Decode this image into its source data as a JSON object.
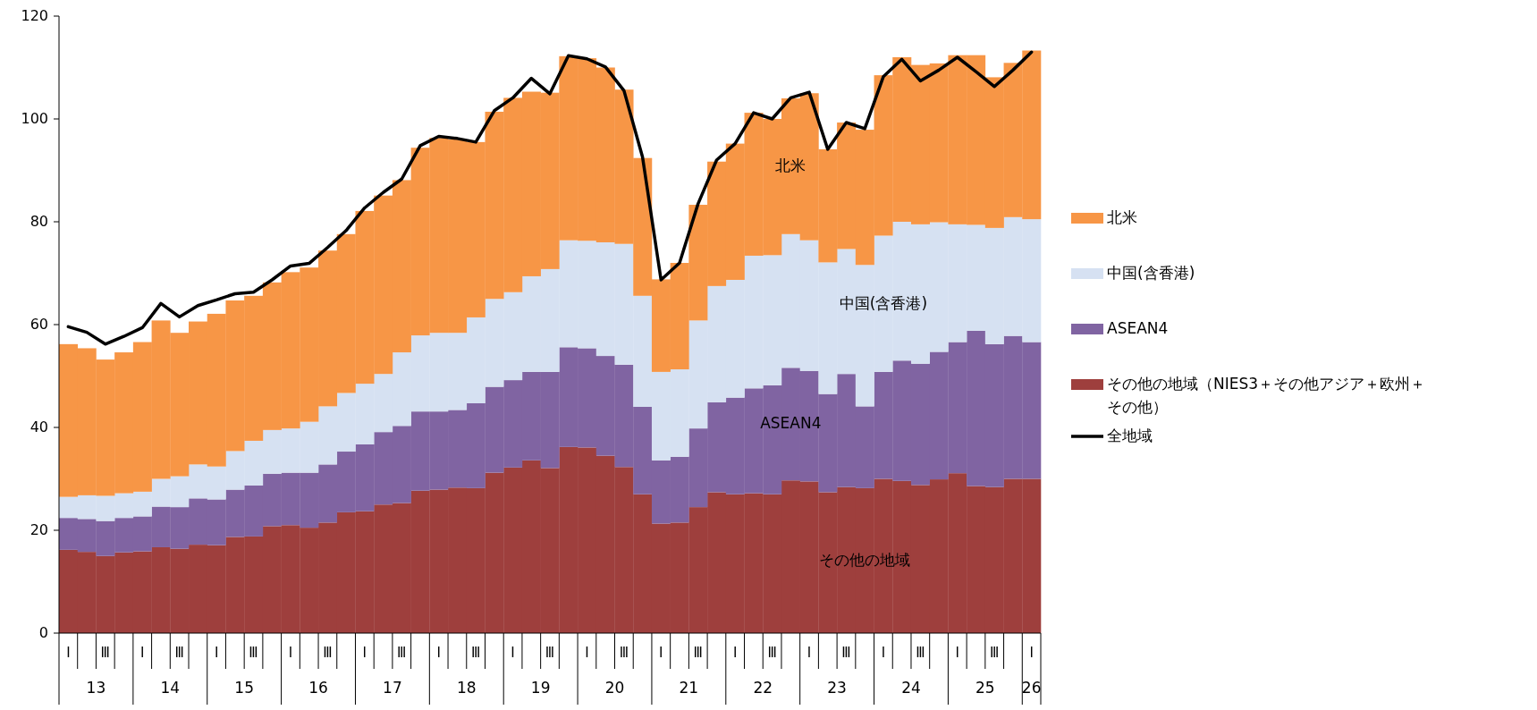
{
  "chart_data": {
    "type": "bar",
    "stacked": true,
    "legend": "right",
    "ylim": [
      0,
      120
    ],
    "yticks": [
      0,
      20,
      40,
      60,
      80,
      100,
      120
    ],
    "categories": [
      "Ⅰ",
      null,
      "Ⅲ",
      null,
      "Ⅰ",
      null,
      "Ⅲ",
      null,
      "Ⅰ",
      null,
      "Ⅲ",
      null,
      "Ⅰ",
      null,
      "Ⅲ",
      null,
      "Ⅰ",
      null,
      "Ⅲ",
      null,
      "Ⅰ",
      null,
      "Ⅲ",
      null,
      "Ⅰ",
      null,
      "Ⅲ",
      null,
      "Ⅰ",
      null,
      "Ⅲ",
      null,
      "Ⅰ",
      null,
      "Ⅲ",
      null,
      "Ⅰ",
      null,
      "Ⅲ",
      null,
      "Ⅰ",
      null,
      "Ⅲ",
      null,
      "Ⅰ",
      null,
      "Ⅲ",
      null,
      "Ⅰ",
      null,
      "Ⅲ",
      null,
      "Ⅰ"
    ],
    "series": [
      {
        "name": "その他の地域（NIES3＋その他アジア＋欧州＋その他）",
        "color": "#9e3f3d",
        "values": [
          16.2,
          15.8,
          15.0,
          15.7,
          15.9,
          16.7,
          16.4,
          17.2,
          17.1,
          18.7,
          18.8,
          20.8,
          21.0,
          20.5,
          21.5,
          23.5,
          23.7,
          25.0,
          25.3,
          27.7,
          27.9,
          28.3,
          28.2,
          31.2,
          32.2,
          33.6,
          32.1,
          36.2,
          36.1,
          34.5,
          32.3,
          27.0,
          21.3,
          21.5,
          24.5,
          27.4,
          27.0,
          27.2,
          27.0,
          29.7,
          29.5,
          27.4,
          28.4,
          28.2,
          30.0,
          29.6,
          28.8,
          29.9,
          31.1,
          28.6,
          28.4,
          30.0,
          30.0
        ]
      },
      {
        "name": "ASEAN4",
        "color": "#8064a2",
        "values": [
          6.2,
          6.4,
          6.8,
          6.7,
          6.8,
          7.9,
          8.1,
          9.0,
          8.9,
          9.2,
          9.9,
          10.2,
          10.2,
          10.7,
          11.3,
          11.8,
          13.0,
          14.1,
          15.0,
          15.4,
          15.2,
          15.1,
          16.5,
          16.7,
          17.0,
          17.2,
          18.7,
          19.4,
          19.3,
          19.4,
          19.9,
          17.0,
          12.3,
          12.8,
          15.3,
          17.5,
          18.8,
          20.4,
          21.2,
          21.9,
          21.5,
          19.1,
          22.0,
          15.9,
          20.8,
          23.4,
          23.6,
          24.8,
          25.5,
          30.2,
          27.8,
          27.8,
          26.6
        ]
      },
      {
        "name": "中国(含香港)",
        "color": "#d6e1f2",
        "values": [
          4.1,
          4.6,
          4.9,
          4.8,
          4.8,
          5.4,
          6.0,
          6.6,
          6.4,
          7.5,
          8.7,
          8.5,
          8.6,
          9.9,
          11.3,
          11.4,
          11.8,
          11.3,
          14.3,
          14.8,
          15.3,
          15.0,
          16.7,
          17.1,
          17.1,
          18.6,
          20.0,
          20.8,
          20.9,
          22.1,
          23.5,
          21.6,
          17.2,
          17.0,
          21.0,
          22.6,
          22.9,
          25.8,
          25.3,
          26.0,
          25.4,
          25.6,
          24.3,
          27.5,
          26.5,
          27.0,
          27.1,
          25.2,
          22.9,
          20.6,
          22.6,
          23.1,
          23.9
        ]
      },
      {
        "name": "北米",
        "color": "#f79646",
        "values": [
          29.7,
          28.6,
          26.5,
          27.4,
          29.1,
          30.8,
          27.9,
          27.8,
          29.7,
          29.3,
          28.2,
          28.7,
          30.4,
          30.0,
          30.3,
          30.9,
          33.6,
          34.7,
          33.5,
          36.5,
          37.9,
          37.6,
          34.1,
          36.4,
          37.8,
          35.9,
          34.3,
          35.8,
          35.5,
          34.0,
          30.0,
          26.8,
          18.0,
          20.7,
          22.5,
          24.2,
          26.5,
          27.8,
          26.5,
          26.4,
          28.6,
          22.0,
          24.6,
          26.3,
          31.2,
          32.0,
          31.0,
          30.9,
          32.9,
          33.0,
          29.3,
          30.0,
          32.8
        ]
      },
      {
        "name": "全地域",
        "type": "line",
        "color": "#000000",
        "values": [
          59.6,
          58.5,
          56.2,
          57.7,
          59.4,
          64.1,
          61.5,
          63.7,
          64.8,
          66.0,
          66.3,
          68.7,
          71.4,
          71.9,
          75.0,
          78.3,
          82.7,
          85.7,
          88.3,
          94.8,
          96.6,
          96.2,
          95.5,
          101.6,
          104.1,
          107.9,
          104.9,
          112.3,
          111.7,
          110.1,
          105.5,
          92.6,
          68.7,
          72.0,
          83.5,
          92.0,
          95.2,
          101.2,
          100.0,
          104.1,
          105.2,
          94.1,
          99.3,
          98.1,
          108.2,
          111.6,
          107.4,
          109.5,
          112.0,
          109.2,
          106.3,
          109.5,
          113.0
        ]
      }
    ],
    "annotations": [
      "その他の地域",
      "ASEAN4",
      "中国(含香港)",
      "北米",
      "13",
      "14",
      "15",
      "16",
      "17",
      "18",
      "19",
      "20",
      "21",
      "22",
      "23",
      "24",
      "25",
      "26"
    ]
  }
}
